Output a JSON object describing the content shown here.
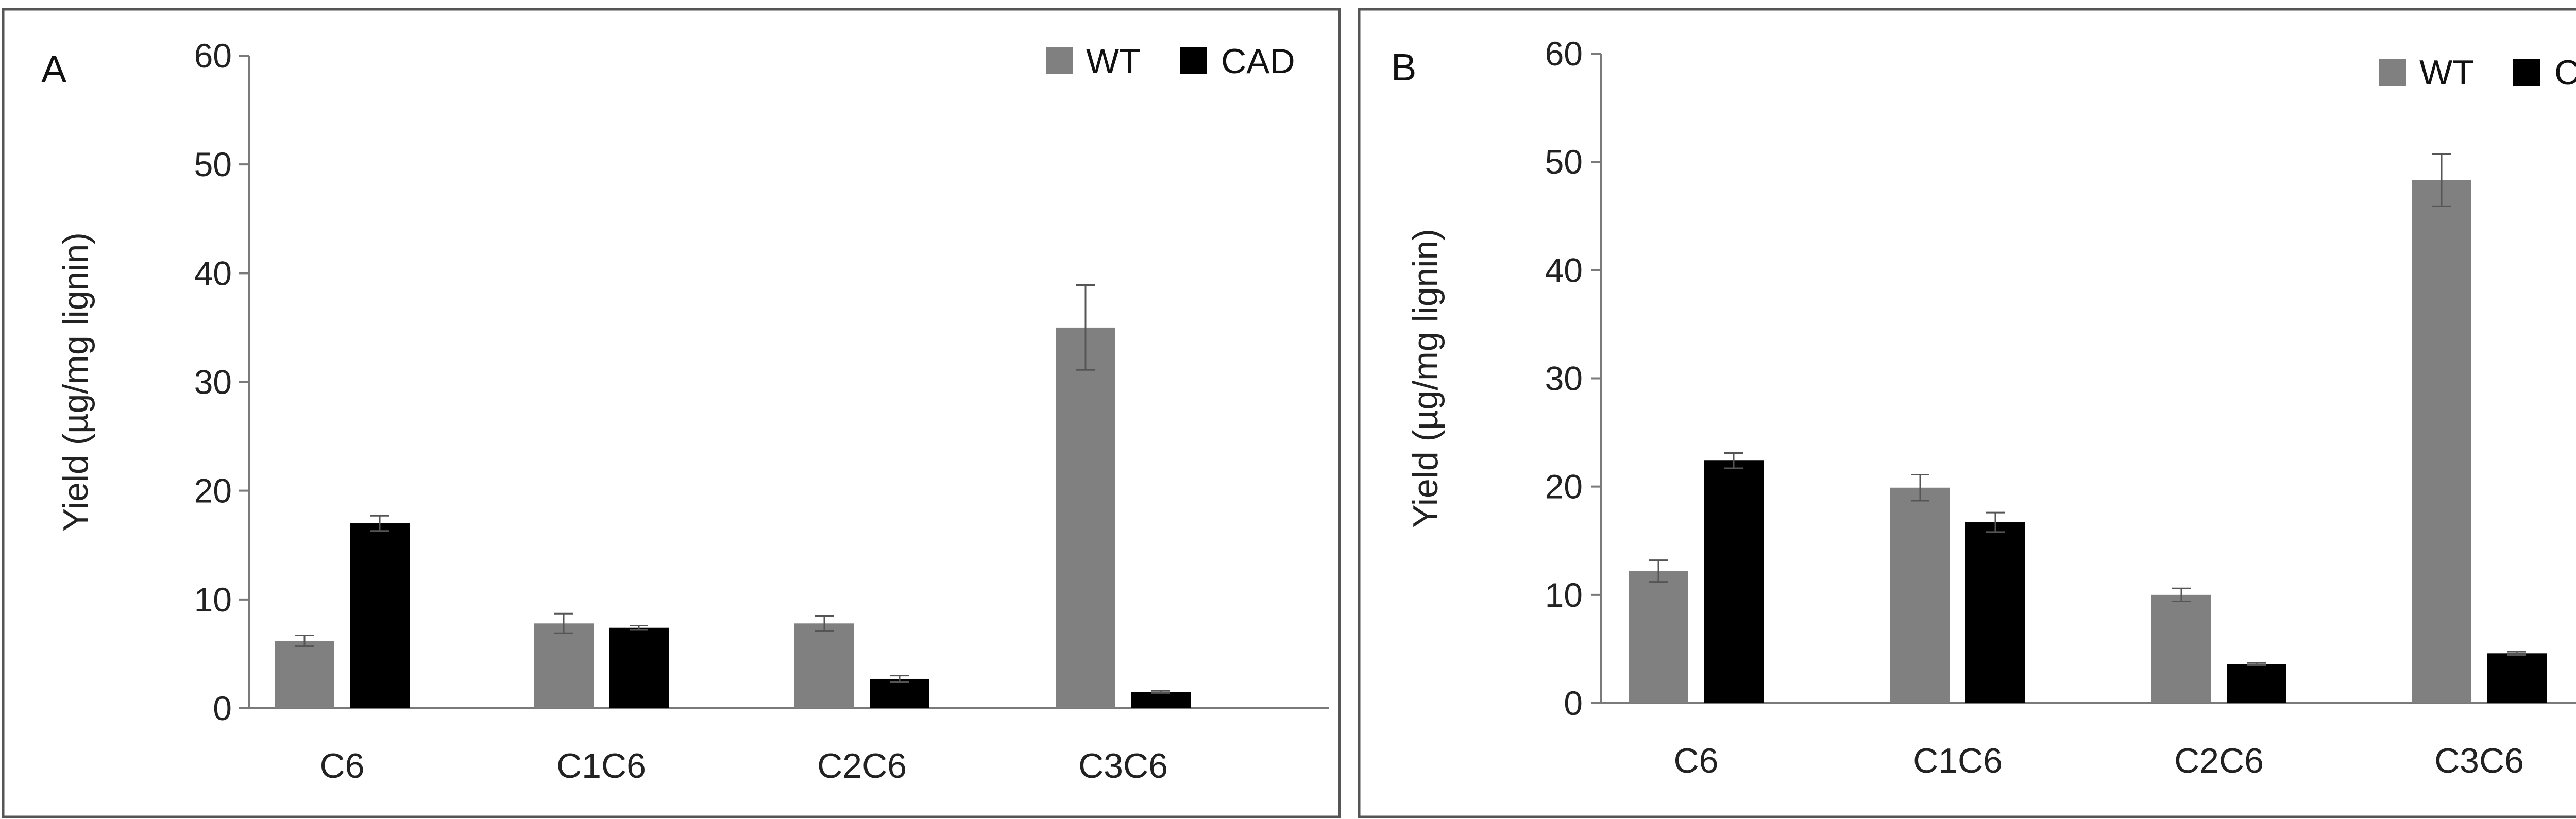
{
  "colors": {
    "WT": "#808080",
    "CAD": "#000000",
    "axis": "#7a7a7a",
    "frame": "#555555",
    "errorbar": "#555555"
  },
  "chart_data": [
    {
      "type": "bar",
      "panel": "A",
      "categories": [
        "C6",
        "C1C6",
        "C2C6",
        "C3C6"
      ],
      "series": [
        {
          "name": "WT",
          "values": [
            6.2,
            7.8,
            7.8,
            35.0
          ],
          "error": [
            0.5,
            0.9,
            0.7,
            3.9
          ]
        },
        {
          "name": "CAD",
          "values": [
            17.0,
            7.4,
            2.7,
            1.5
          ],
          "error": [
            0.7,
            0.2,
            0.3,
            0.1
          ]
        }
      ],
      "ylabel": "Yield (µg/mg lignin)",
      "xlabel": "",
      "ylim": [
        0,
        60
      ],
      "yticks": [
        "0",
        "10",
        "20",
        "30",
        "40",
        "50",
        "60"
      ],
      "legend": "top-right",
      "grid": false
    },
    {
      "type": "bar",
      "panel": "B",
      "categories": [
        "C6",
        "C1C6",
        "C2C6",
        "C3C6"
      ],
      "series": [
        {
          "name": "WT",
          "values": [
            12.2,
            19.9,
            10.0,
            48.3
          ],
          "error": [
            1.0,
            1.2,
            0.6,
            2.4
          ]
        },
        {
          "name": "CAD",
          "values": [
            22.4,
            16.7,
            3.6,
            4.6
          ],
          "error": [
            0.7,
            0.9,
            0.1,
            0.15
          ]
        }
      ],
      "ylabel": "Yield (µg/mg lignin)",
      "xlabel": "",
      "ylim": [
        0,
        60
      ],
      "yticks": [
        "0",
        "10",
        "20",
        "30",
        "40",
        "50",
        "60"
      ],
      "legend": "top-right",
      "grid": false
    }
  ]
}
